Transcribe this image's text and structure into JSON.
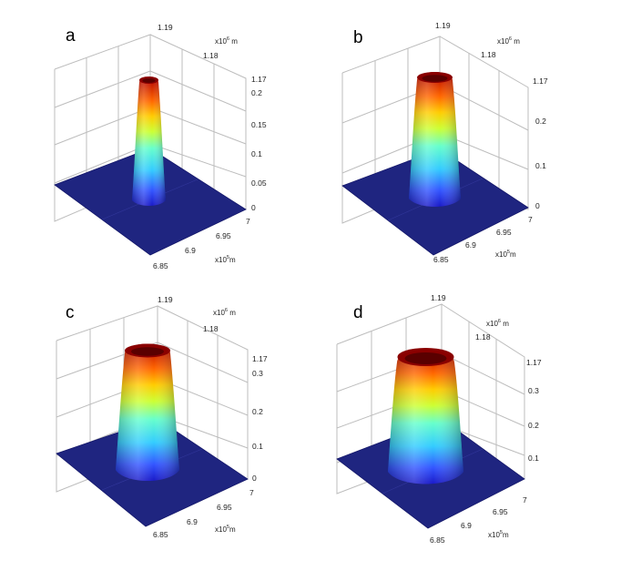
{
  "panels": [
    {
      "letter": "a",
      "z_ticks": [
        "0.2",
        "0.15",
        "0.1",
        "0.05",
        "0"
      ],
      "y_ticks": [
        "1.19",
        "1.18",
        "1.17"
      ],
      "x_ticks": [
        "7",
        "6.95",
        "6.9",
        "6.85"
      ],
      "y_unit": {
        "base": "x10",
        "exp": "6",
        "unit": " m"
      },
      "x_unit": {
        "base": "x10",
        "exp": "5",
        "unit": "m"
      }
    },
    {
      "letter": "b",
      "z_ticks": [
        "0.2",
        "0.1",
        "0"
      ],
      "y_ticks": [
        "1.19",
        "1.18",
        "1.17"
      ],
      "x_ticks": [
        "7",
        "6.95",
        "6.9",
        "6.85"
      ],
      "y_unit": {
        "base": "x10",
        "exp": "6",
        "unit": " m"
      },
      "x_unit": {
        "base": "x10",
        "exp": "5",
        "unit": "m"
      }
    },
    {
      "letter": "c",
      "z_ticks": [
        "0.3",
        "0.2",
        "0.1",
        "0"
      ],
      "y_ticks": [
        "1.19",
        "1.18",
        "1.17"
      ],
      "x_ticks": [
        "7",
        "6.95",
        "6.9",
        "6.85"
      ],
      "y_unit": {
        "base": "x10",
        "exp": "6",
        "unit": " m"
      },
      "x_unit": {
        "base": "x10",
        "exp": "5",
        "unit": "m"
      }
    },
    {
      "letter": "d",
      "z_ticks": [
        "0.3",
        "0.2",
        "0.1"
      ],
      "y_ticks": [
        "1.19",
        "1.18",
        "1.17"
      ],
      "x_ticks": [
        "7",
        "6.95",
        "6.9",
        "6.85"
      ],
      "y_unit": {
        "base": "x10",
        "exp": "6",
        "unit": " m"
      },
      "x_unit": {
        "base": "x10",
        "exp": "5",
        "unit": "m"
      }
    }
  ],
  "colormap": "jet",
  "colors": {
    "floor": "#1f2580",
    "grid": "#bdbdbd"
  }
}
